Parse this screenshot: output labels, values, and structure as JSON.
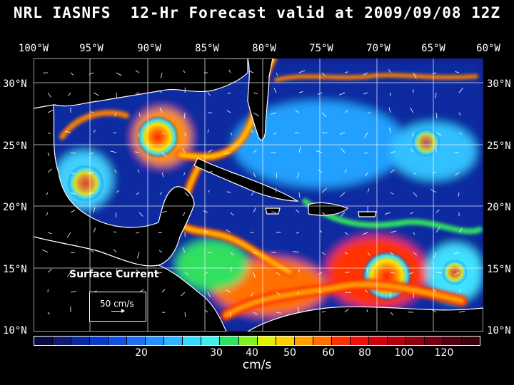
{
  "title": "NRL IASNFS  12-Hr Forecast valid at 2009/09/08 12Z",
  "lon_labels": [
    "100°W",
    "95°W",
    "90°W",
    "85°W",
    "80°W",
    "75°W",
    "70°W",
    "65°W",
    "60°W"
  ],
  "lat_labels": [
    "30°N",
    "25°N",
    "20°N",
    "15°N",
    "10°N"
  ],
  "legend": {
    "title": "Surface Current",
    "vector_label": "50 cm/s"
  },
  "colorbar": {
    "colors": [
      "#0a0a40",
      "#101a70",
      "#0b28a0",
      "#0a3ac8",
      "#1250e0",
      "#1f70f0",
      "#2890ff",
      "#30b4ff",
      "#38d8ff",
      "#40f0e8",
      "#30e060",
      "#80f020",
      "#e0f000",
      "#ffd000",
      "#ffa000",
      "#ff7000",
      "#ff3000",
      "#f01010",
      "#d00010",
      "#b00010",
      "#900010",
      "#700010",
      "#500010",
      "#380008"
    ],
    "ticks": [
      "20",
      "30",
      "40",
      "50",
      "60",
      "80",
      "100",
      "120"
    ],
    "unit": "cm/s"
  },
  "map": {
    "lon_range": [
      -100,
      -60
    ],
    "lat_range": [
      10,
      31
    ]
  }
}
